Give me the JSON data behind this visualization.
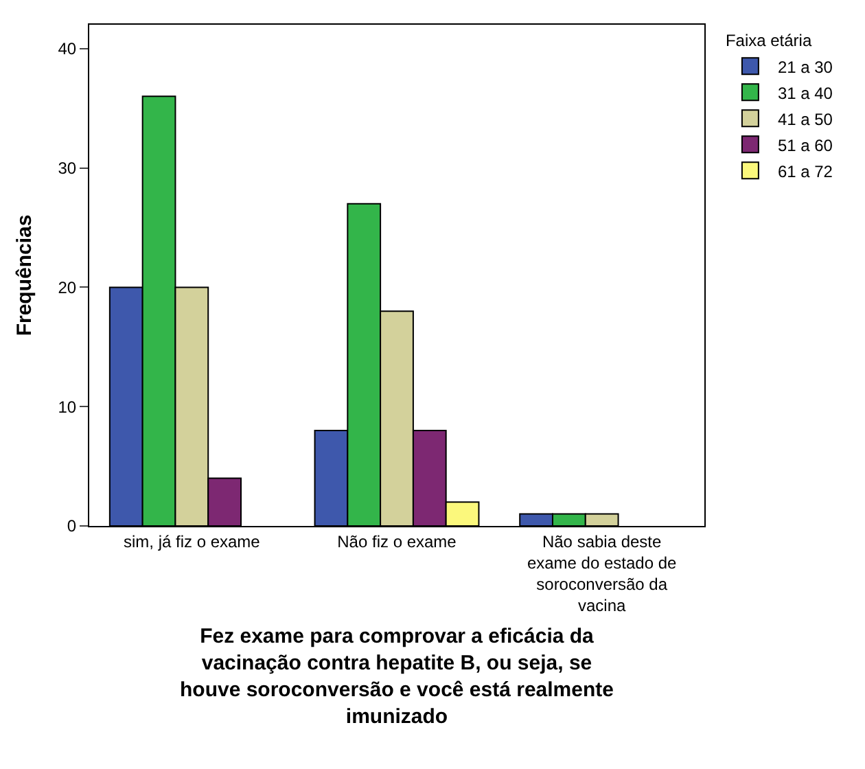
{
  "chart_data": {
    "type": "bar",
    "xlabel": "Fez exame para comprovar a eficácia da vacinação contra hepatite B, ou seja, se houve soroconversão e você está realmente imunizado",
    "ylabel": "Frequências",
    "legend_title": "Faixa etária",
    "categories": [
      "sim, já fiz o exame",
      "Não fiz o exame",
      "Não sabia deste exame do estado de soroconversão da vacina"
    ],
    "series": [
      {
        "name": "21 a 30",
        "color": "#3e58ac",
        "values": [
          20,
          8,
          1
        ]
      },
      {
        "name": "31 a 40",
        "color": "#33b54a",
        "values": [
          36,
          27,
          1
        ]
      },
      {
        "name": "41 a 50",
        "color": "#d3d19b",
        "values": [
          20,
          18,
          1
        ]
      },
      {
        "name": "51 a 60",
        "color": "#7d2872",
        "values": [
          4,
          8,
          null
        ]
      },
      {
        "name": "61 a 72",
        "color": "#fbf87c",
        "values": [
          null,
          2,
          null
        ]
      }
    ],
    "ylim": [
      0,
      42
    ],
    "yticks": [
      0,
      10,
      20,
      30,
      40
    ],
    "legend": "top right"
  }
}
